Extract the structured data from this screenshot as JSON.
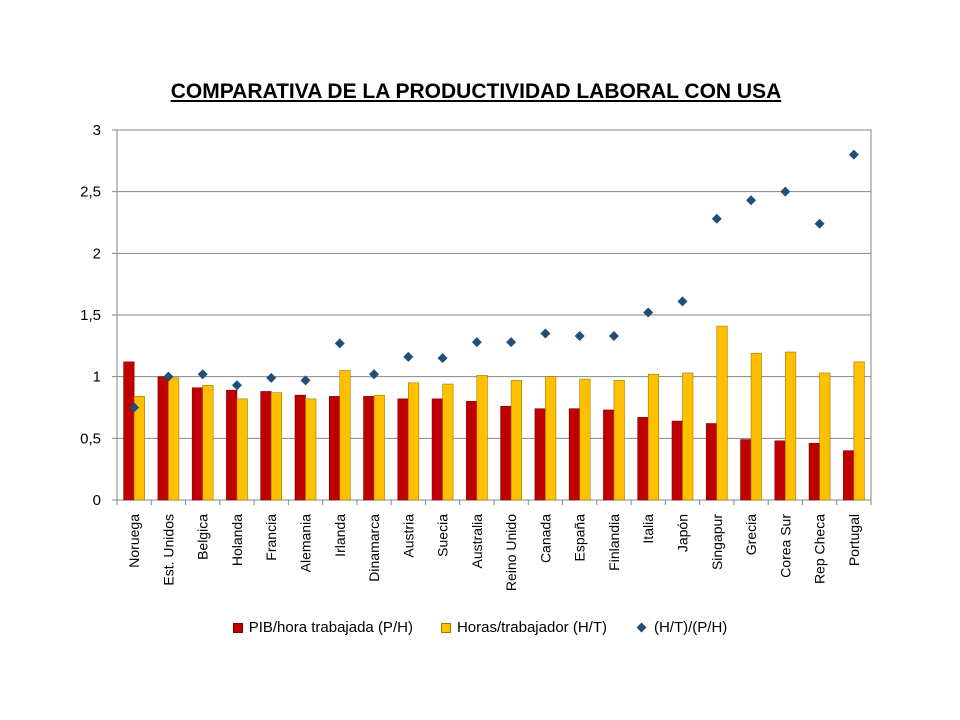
{
  "chart_data": {
    "type": "bar",
    "title": "COMPARATIVA DE LA PRODUCTIVIDAD LABORAL CON USA",
    "categories": [
      "Noruega",
      "Est. Unidos",
      "Belgica",
      "Holanda",
      "Francia",
      "Alemania",
      "Irlanda",
      "Dinamarca",
      "Austria",
      "Suecia",
      "Australia",
      "Reino Unido",
      "Canada",
      "España",
      "Finlandia",
      "Italia",
      "Japón",
      "Singapur",
      "Grecia",
      "Corea Sur",
      "Rep Checa",
      "Portugal"
    ],
    "series": [
      {
        "name": "PIB/hora trabajada (P/H)",
        "kind": "bar",
        "color": "#C00000",
        "values": [
          1.12,
          1.0,
          0.91,
          0.89,
          0.88,
          0.85,
          0.84,
          0.84,
          0.82,
          0.82,
          0.8,
          0.76,
          0.74,
          0.74,
          0.73,
          0.67,
          0.64,
          0.62,
          0.49,
          0.48,
          0.46,
          0.4
        ]
      },
      {
        "name": "Horas/trabajador (H/T)",
        "kind": "bar",
        "color": "#FFC000",
        "values": [
          0.84,
          0.99,
          0.93,
          0.82,
          0.87,
          0.82,
          1.05,
          0.85,
          0.95,
          0.94,
          1.01,
          0.97,
          1.0,
          0.98,
          0.97,
          1.02,
          1.03,
          1.41,
          1.19,
          1.2,
          1.03,
          1.12
        ]
      },
      {
        "name": "(H/T)/(P/H)",
        "kind": "scatter",
        "color": "#1F4E79",
        "values": [
          0.75,
          1.0,
          1.02,
          0.93,
          0.99,
          0.97,
          1.27,
          1.02,
          1.16,
          1.15,
          1.28,
          1.28,
          1.35,
          1.33,
          1.33,
          1.52,
          1.61,
          2.28,
          2.43,
          2.5,
          2.24,
          2.8
        ]
      }
    ],
    "ylim": [
      0,
      3
    ],
    "yticks": [
      "0",
      "0,5",
      "1",
      "1,5",
      "2",
      "2,5",
      "3"
    ],
    "grid": true,
    "legend_position": "bottom"
  }
}
